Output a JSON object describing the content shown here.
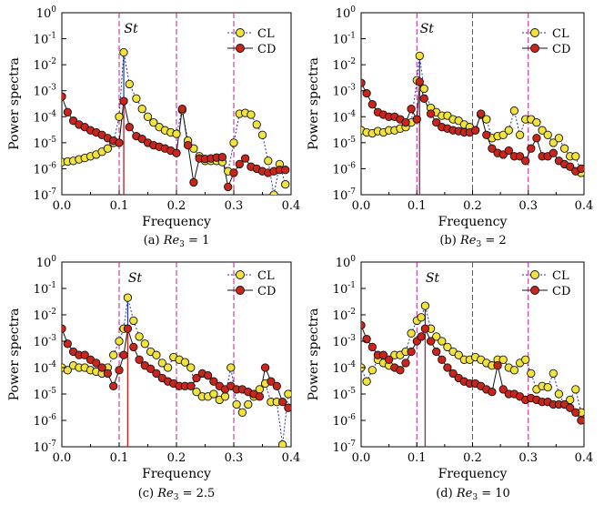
{
  "chart_data": [
    {
      "type": "scatter",
      "caption_prefix": "(a) ",
      "caption_var": "Re",
      "caption_sub": "3",
      "caption_suffix": " = 1",
      "xlabel": "Frequency",
      "ylabel": "Power spectra",
      "xlim": [
        0,
        0.4
      ],
      "ylim_log10": [
        -7,
        0
      ],
      "yscale": "log",
      "xticks": [
        "0.0",
        "0.1",
        "0.2",
        "0.3",
        "0.4"
      ],
      "yticks": [
        {
          "base": "10",
          "exp": "0"
        },
        {
          "base": "10",
          "exp": "-1"
        },
        {
          "base": "10",
          "exp": "-2"
        },
        {
          "base": "10",
          "exp": "-3"
        },
        {
          "base": "10",
          "exp": "-4"
        },
        {
          "base": "10",
          "exp": "-5"
        },
        {
          "base": "10",
          "exp": "-6"
        },
        {
          "base": "10",
          "exp": "-7"
        }
      ],
      "annotation": "St",
      "st_freq": 0.108,
      "vlines": [
        0.1,
        0.2,
        0.3
      ],
      "legend": [
        "CL",
        "CD"
      ],
      "series": [
        {
          "name": "CL",
          "color": "#f2e33c",
          "line": "dotted",
          "x": [
            0.0,
            0.01,
            0.02,
            0.03,
            0.04,
            0.05,
            0.06,
            0.07,
            0.08,
            0.09,
            0.1,
            0.108,
            0.118,
            0.13,
            0.14,
            0.15,
            0.16,
            0.17,
            0.18,
            0.19,
            0.2,
            0.21,
            0.22,
            0.23,
            0.24,
            0.25,
            0.26,
            0.27,
            0.28,
            0.29,
            0.3,
            0.31,
            0.32,
            0.33,
            0.34,
            0.35,
            0.36,
            0.37,
            0.38,
            0.39
          ],
          "y": [
            1.8e-06,
            1.9e-06,
            2e-06,
            2.3e-06,
            2.6e-06,
            3e-06,
            3.5e-06,
            4.5e-06,
            6e-06,
            1e-05,
            0.0001,
            0.03,
            0.0018,
            0.0005,
            0.0002,
            0.0001,
            6e-05,
            4e-05,
            3e-05,
            2.5e-05,
            2.2e-05,
            0.00018,
            1.2e-05,
            6e-06,
            3e-06,
            2e-06,
            2e-06,
            2e-06,
            1.8e-06,
            8e-07,
            1e-05,
            0.00013,
            0.00014,
            0.00012,
            5e-05,
            2e-05,
            2e-06,
            1e-07,
            1.5e-06,
            2.5e-07
          ]
        },
        {
          "name": "CD",
          "color": "#c9251c",
          "line": "solid",
          "x": [
            0.0,
            0.01,
            0.02,
            0.03,
            0.04,
            0.05,
            0.06,
            0.07,
            0.08,
            0.09,
            0.1,
            0.108,
            0.118,
            0.13,
            0.14,
            0.15,
            0.16,
            0.17,
            0.18,
            0.19,
            0.2,
            0.21,
            0.22,
            0.23,
            0.24,
            0.25,
            0.26,
            0.27,
            0.28,
            0.29,
            0.3,
            0.31,
            0.32,
            0.33,
            0.34,
            0.35,
            0.36,
            0.37,
            0.38,
            0.39
          ],
          "y": [
            0.0006,
            0.00015,
            7e-05,
            5e-05,
            4e-05,
            3e-05,
            2.5e-05,
            2e-05,
            1.5e-05,
            1.2e-05,
            1e-05,
            0.0004,
            4e-05,
            1.8e-05,
            1.4e-05,
            1e-05,
            8e-06,
            7e-06,
            6e-06,
            5e-06,
            4e-06,
            0.0002,
            8e-06,
            3e-07,
            2.5e-06,
            2.4e-06,
            2.5e-06,
            2.7e-06,
            2.8e-06,
            2e-07,
            7e-07,
            1.5e-06,
            2.5e-06,
            1.2e-06,
            1e-06,
            8e-07,
            7e-07,
            8e-07,
            9e-07,
            9e-07
          ]
        }
      ]
    },
    {
      "type": "scatter",
      "caption_prefix": "(b) ",
      "caption_var": "Re",
      "caption_sub": "3",
      "caption_suffix": " = 2",
      "xlabel": "Frequency",
      "ylabel": "Power spectra",
      "xlim": [
        0,
        0.4
      ],
      "ylim_log10": [
        -7,
        0
      ],
      "yscale": "log",
      "xticks": [
        "0.0",
        "0.1",
        "0.2",
        "0.3",
        "0.4"
      ],
      "yticks": [
        {
          "base": "10",
          "exp": "0"
        },
        {
          "base": "10",
          "exp": "-1"
        },
        {
          "base": "10",
          "exp": "-2"
        },
        {
          "base": "10",
          "exp": "-3"
        },
        {
          "base": "10",
          "exp": "-4"
        },
        {
          "base": "10",
          "exp": "-5"
        },
        {
          "base": "10",
          "exp": "-6"
        },
        {
          "base": "10",
          "exp": "-7"
        }
      ],
      "annotation": "St",
      "st_freq": 0.105,
      "vlines": [
        0.1,
        0.2,
        0.3
      ],
      "legend": [
        "CL",
        "CD"
      ],
      "series": [
        {
          "name": "CL",
          "color": "#f2e33c",
          "line": "dotted",
          "x": [
            0.0,
            0.01,
            0.02,
            0.03,
            0.04,
            0.05,
            0.06,
            0.07,
            0.08,
            0.09,
            0.1,
            0.105,
            0.113,
            0.125,
            0.135,
            0.145,
            0.155,
            0.165,
            0.175,
            0.185,
            0.195,
            0.205,
            0.215,
            0.225,
            0.235,
            0.245,
            0.255,
            0.265,
            0.275,
            0.285,
            0.295,
            0.305,
            0.315,
            0.325,
            0.335,
            0.345,
            0.355,
            0.365,
            0.375,
            0.385,
            0.395
          ],
          "y": [
            3e-05,
            2.5e-05,
            2.3e-05,
            2.8e-05,
            2.5e-05,
            3e-05,
            3e-05,
            3.5e-05,
            4e-05,
            6e-05,
            0.0025,
            0.022,
            0.0012,
            0.00022,
            0.00015,
            0.00011,
            0.00011,
            8e-05,
            7e-05,
            5e-05,
            4e-05,
            3e-05,
            0.00012,
            8e-05,
            1.5e-05,
            1.8e-05,
            2e-05,
            3e-05,
            0.00017,
            2e-05,
            8e-05,
            8e-05,
            6e-05,
            3e-05,
            2e-05,
            1e-05,
            1.5e-05,
            6e-06,
            3e-06,
            3e-06,
            7e-07
          ]
        },
        {
          "name": "CD",
          "color": "#c9251c",
          "line": "solid",
          "x": [
            0.0,
            0.01,
            0.02,
            0.03,
            0.04,
            0.05,
            0.06,
            0.07,
            0.08,
            0.09,
            0.1,
            0.105,
            0.113,
            0.125,
            0.135,
            0.145,
            0.155,
            0.165,
            0.175,
            0.185,
            0.195,
            0.205,
            0.215,
            0.225,
            0.235,
            0.245,
            0.255,
            0.265,
            0.275,
            0.285,
            0.295,
            0.305,
            0.315,
            0.325,
            0.335,
            0.345,
            0.355,
            0.365,
            0.375,
            0.385,
            0.395
          ],
          "y": [
            0.002,
            0.0008,
            0.0003,
            0.00015,
            0.00012,
            0.0001,
            0.0001,
            8e-05,
            6e-05,
            0.0002,
            8e-05,
            0.0022,
            0.0005,
            0.00013,
            6e-05,
            4e-05,
            3.5e-05,
            3e-05,
            2.8e-05,
            2.5e-05,
            2.5e-05,
            3e-05,
            0.00013,
            2e-05,
            6e-06,
            4e-06,
            3.5e-06,
            5e-06,
            3e-06,
            3e-06,
            2e-06,
            6e-06,
            1.5e-05,
            3e-06,
            3e-06,
            4e-06,
            2e-06,
            1.5e-06,
            1.2e-06,
            8e-07,
            1e-06
          ]
        }
      ]
    },
    {
      "type": "scatter",
      "caption_prefix": "(c) ",
      "caption_var": "Re",
      "caption_sub": "3",
      "caption_suffix": " = 2.5",
      "xlabel": "Frequency",
      "ylabel": "Power spectra",
      "xlim": [
        0,
        0.4
      ],
      "ylim_log10": [
        -7,
        0
      ],
      "yscale": "log",
      "xticks": [
        "0.0",
        "0.1",
        "0.2",
        "0.3",
        "0.4"
      ],
      "yticks": [
        {
          "base": "10",
          "exp": "0"
        },
        {
          "base": "10",
          "exp": "-1"
        },
        {
          "base": "10",
          "exp": "-2"
        },
        {
          "base": "10",
          "exp": "-3"
        },
        {
          "base": "10",
          "exp": "-4"
        },
        {
          "base": "10",
          "exp": "-5"
        },
        {
          "base": "10",
          "exp": "-6"
        },
        {
          "base": "10",
          "exp": "-7"
        }
      ],
      "annotation": "St",
      "st_freq": 0.115,
      "vlines": [
        0.1,
        0.2,
        0.3
      ],
      "legend": [
        "CL",
        "CD"
      ],
      "series": [
        {
          "name": "CL",
          "color": "#f2e33c",
          "line": "dotted",
          "x": [
            0.0,
            0.01,
            0.02,
            0.03,
            0.04,
            0.05,
            0.06,
            0.07,
            0.08,
            0.09,
            0.1,
            0.108,
            0.115,
            0.125,
            0.135,
            0.145,
            0.155,
            0.165,
            0.175,
            0.185,
            0.195,
            0.205,
            0.215,
            0.225,
            0.235,
            0.245,
            0.255,
            0.265,
            0.275,
            0.285,
            0.295,
            0.305,
            0.315,
            0.325,
            0.335,
            0.345,
            0.355,
            0.365,
            0.375,
            0.385,
            0.395
          ],
          "y": [
            0.0001,
            8e-05,
            0.00012,
            0.0001,
            0.0001,
            8e-05,
            7e-05,
            6e-05,
            0.0001,
            0.0003,
            0.001,
            0.003,
            0.045,
            0.006,
            0.0015,
            0.0008,
            0.0004,
            0.0003,
            0.00015,
            0.0001,
            0.00025,
            0.0002,
            0.00016,
            0.0001,
            1.2e-05,
            8e-06,
            8e-06,
            1e-05,
            6e-06,
            8e-06,
            0.0001,
            4e-06,
            2e-06,
            4e-06,
            8e-06,
            1.5e-05,
            2.5e-05,
            5e-06,
            5e-06,
            1.2e-07,
            1e-05
          ]
        },
        {
          "name": "CD",
          "color": "#c9251c",
          "line": "solid",
          "x": [
            0.0,
            0.01,
            0.02,
            0.03,
            0.04,
            0.05,
            0.06,
            0.07,
            0.08,
            0.09,
            0.1,
            0.108,
            0.115,
            0.125,
            0.135,
            0.145,
            0.155,
            0.165,
            0.175,
            0.185,
            0.195,
            0.205,
            0.215,
            0.225,
            0.235,
            0.245,
            0.255,
            0.265,
            0.275,
            0.285,
            0.295,
            0.305,
            0.315,
            0.325,
            0.335,
            0.345,
            0.355,
            0.365,
            0.375,
            0.385,
            0.395
          ],
          "y": [
            0.003,
            0.0008,
            0.0004,
            0.0003,
            0.0003,
            0.0002,
            0.00015,
            0.0001,
            6e-05,
            2e-05,
            8e-05,
            0.0003,
            0.003,
            0.0006,
            0.0002,
            0.00012,
            9e-05,
            6e-05,
            4e-05,
            3e-05,
            2.5e-05,
            2e-05,
            2e-05,
            2e-05,
            4e-05,
            6e-05,
            5e-05,
            3e-05,
            2e-05,
            1.5e-05,
            2e-05,
            1.5e-05,
            1.5e-05,
            1.2e-05,
            1e-05,
            8e-06,
            0.0001,
            3e-05,
            2e-05,
            5e-06,
            3e-06
          ]
        }
      ]
    },
    {
      "type": "scatter",
      "caption_prefix": "(d) ",
      "caption_var": "Re",
      "caption_sub": "3",
      "caption_suffix": " = 10",
      "xlabel": "Frequency",
      "ylabel": "Power spectra",
      "xlim": [
        0,
        0.4
      ],
      "ylim_log10": [
        -7,
        0
      ],
      "yscale": "log",
      "xticks": [
        "0.0",
        "0.1",
        "0.2",
        "0.3",
        "0.4"
      ],
      "yticks": [
        {
          "base": "10",
          "exp": "0"
        },
        {
          "base": "10",
          "exp": "-1"
        },
        {
          "base": "10",
          "exp": "-2"
        },
        {
          "base": "10",
          "exp": "-3"
        },
        {
          "base": "10",
          "exp": "-4"
        },
        {
          "base": "10",
          "exp": "-5"
        },
        {
          "base": "10",
          "exp": "-6"
        },
        {
          "base": "10",
          "exp": "-7"
        }
      ],
      "annotation": "St",
      "st_freq": 0.115,
      "vlines": [
        0.1,
        0.2,
        0.3
      ],
      "legend": [
        "CL",
        "CD"
      ],
      "series": [
        {
          "name": "CL",
          "color": "#f2e33c",
          "line": "dotted",
          "x": [
            0.0,
            0.01,
            0.02,
            0.03,
            0.04,
            0.05,
            0.06,
            0.07,
            0.08,
            0.09,
            0.1,
            0.108,
            0.115,
            0.125,
            0.135,
            0.145,
            0.155,
            0.165,
            0.175,
            0.185,
            0.195,
            0.205,
            0.215,
            0.225,
            0.235,
            0.245,
            0.255,
            0.265,
            0.275,
            0.285,
            0.295,
            0.305,
            0.315,
            0.325,
            0.335,
            0.345,
            0.355,
            0.365,
            0.375,
            0.385,
            0.395
          ],
          "y": [
            0.0001,
            3e-05,
            8e-05,
            0.0002,
            0.00015,
            0.00012,
            0.0003,
            0.0003,
            0.0004,
            0.002,
            0.006,
            0.008,
            0.022,
            0.003,
            0.0015,
            0.001,
            0.0006,
            0.0004,
            0.0003,
            0.0002,
            0.0002,
            0.00025,
            0.0002,
            0.00015,
            0.00012,
            0.0002,
            0.0002,
            0.0001,
            8e-05,
            0.00015,
            0.0002,
            6e-05,
            1.5e-05,
            2e-05,
            1.8e-05,
            6e-05,
            1e-05,
            4e-06,
            6e-06,
            1.5e-05,
            2e-06
          ]
        },
        {
          "name": "CD",
          "color": "#c9251c",
          "line": "solid",
          "x": [
            0.0,
            0.01,
            0.02,
            0.03,
            0.04,
            0.05,
            0.06,
            0.07,
            0.08,
            0.09,
            0.1,
            0.108,
            0.115,
            0.125,
            0.135,
            0.145,
            0.155,
            0.165,
            0.175,
            0.185,
            0.195,
            0.205,
            0.215,
            0.225,
            0.235,
            0.245,
            0.255,
            0.265,
            0.275,
            0.285,
            0.295,
            0.305,
            0.315,
            0.325,
            0.335,
            0.345,
            0.355,
            0.365,
            0.375,
            0.385,
            0.395
          ],
          "y": [
            0.004,
            0.0012,
            0.0006,
            0.0003,
            0.0003,
            0.0002,
            0.0001,
            8e-05,
            0.00015,
            0.0004,
            0.001,
            0.0015,
            0.003,
            0.001,
            0.0004,
            0.0002,
            0.0001,
            6e-05,
            4e-05,
            3e-05,
            2.5e-05,
            2.5e-05,
            2e-05,
            1.5e-05,
            1.2e-05,
            0.00012,
            1.5e-05,
            1e-05,
            1e-05,
            8e-06,
            6e-06,
            7e-06,
            6e-06,
            5e-06,
            5e-06,
            4e-06,
            4e-06,
            4e-06,
            3e-06,
            2e-06,
            1e-06
          ]
        }
      ]
    }
  ]
}
